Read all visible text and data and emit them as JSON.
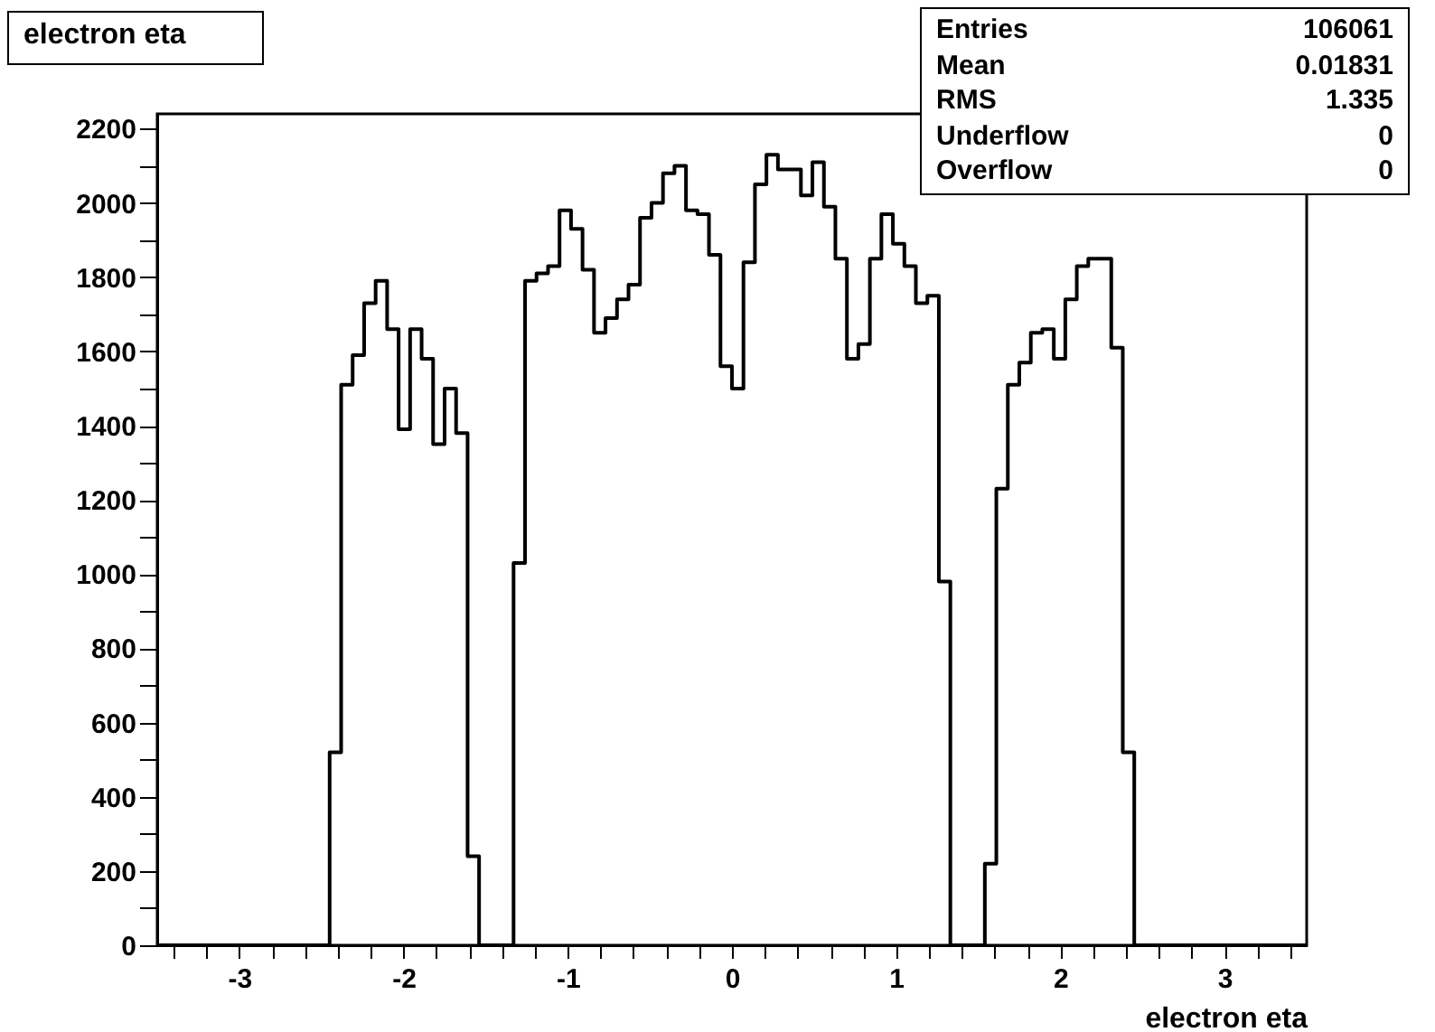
{
  "chart_data": {
    "type": "histogram",
    "title": "electron eta",
    "xlabel": "electron eta",
    "annotations": [
      "Entries",
      "106061",
      "Mean",
      "0.01831",
      "RMS",
      "1.335",
      "Underflow",
      "0",
      "Overflow",
      "0"
    ],
    "color": "#000000",
    "bins": [
      -3.5,
      -3.43,
      -3.36,
      -3.29,
      -3.22,
      -3.15,
      -3.08,
      -3.01,
      -2.94,
      -2.87,
      -2.8,
      -2.73,
      -2.66,
      -2.59,
      -2.52,
      -2.45,
      -2.38,
      -2.31,
      -2.24,
      -2.17,
      -2.1,
      -2.03,
      -1.96,
      -1.89,
      -1.82,
      -1.75,
      -1.68,
      -1.61,
      -1.54,
      -1.47,
      -1.4,
      -1.33,
      -1.26,
      -1.19,
      -1.12,
      -1.05,
      -0.98,
      -0.91,
      -0.84,
      -0.77,
      -0.7,
      -0.63,
      -0.56,
      -0.49,
      -0.42,
      -0.35,
      -0.28,
      -0.21,
      -0.14,
      -0.07,
      0,
      0.07,
      0.14,
      0.21,
      0.28,
      0.35,
      0.42,
      0.49,
      0.56,
      0.63,
      0.7,
      0.77,
      0.84,
      0.91,
      0.98,
      1.05,
      1.12,
      1.19,
      1.26,
      1.33,
      1.4,
      1.47,
      1.54,
      1.61,
      1.68,
      1.75,
      1.82,
      1.89,
      1.96,
      2.03,
      2.1,
      2.17,
      2.24,
      2.31,
      2.38,
      2.45,
      2.52,
      2.59,
      2.66,
      2.73,
      2.8,
      2.87,
      2.94,
      3.01,
      3.08,
      3.15,
      3.22,
      3.29,
      3.36,
      3.43,
      3.5
    ],
    "values": [
      0,
      0,
      0,
      0,
      0,
      0,
      0,
      0,
      0,
      0,
      0,
      0,
      0,
      0,
      0,
      520,
      1510,
      1590,
      1730,
      1790,
      1660,
      1390,
      1660,
      1580,
      1350,
      1500,
      1380,
      240,
      0,
      0,
      0,
      1030,
      1790,
      1810,
      1830,
      1980,
      1930,
      1820,
      1650,
      1690,
      1740,
      1780,
      1960,
      2000,
      2080,
      2100,
      1980,
      1970,
      1860,
      1560,
      1500,
      1840,
      2050,
      2130,
      2090,
      2090,
      2020,
      2110,
      1990,
      1850,
      1580,
      1620,
      1850,
      1970,
      1890,
      1830,
      1730,
      1750,
      980,
      0,
      0,
      0,
      220,
      1230,
      1510,
      1570,
      1650,
      1660,
      1580,
      1740,
      1830,
      1850,
      1850,
      1610,
      520,
      0,
      0,
      0,
      0,
      0,
      0,
      0,
      0,
      0,
      0,
      0,
      0,
      0,
      0,
      0
    ],
    "xlim": [
      -3.5,
      3.5
    ],
    "xticks": [
      {
        "value": -3.4,
        "label": null
      },
      {
        "value": -3.2,
        "label": null
      },
      -3,
      {
        "value": -2.8,
        "label": null
      },
      {
        "value": -2.6,
        "label": null
      },
      {
        "value": -2.4,
        "label": null
      },
      {
        "value": -2.2,
        "label": null
      },
      -2,
      {
        "value": -1.8,
        "label": null
      },
      {
        "value": -1.6,
        "label": null
      },
      {
        "value": -1.4,
        "label": null
      },
      {
        "value": -1.2,
        "label": null
      },
      -1,
      {
        "value": -0.8,
        "label": null
      },
      {
        "value": -0.6,
        "label": null
      },
      {
        "value": -0.4,
        "label": null
      },
      {
        "value": -0.2,
        "label": null
      },
      0,
      {
        "value": 0.2,
        "label": null
      },
      {
        "value": 0.4,
        "label": null
      },
      {
        "value": 0.6,
        "label": null
      },
      {
        "value": 0.8,
        "label": null
      },
      1,
      {
        "value": 1.2,
        "label": null
      },
      {
        "value": 1.4,
        "label": null
      },
      {
        "value": 1.6,
        "label": null
      },
      {
        "value": 1.8,
        "label": null
      },
      2,
      {
        "value": 2.2,
        "label": null
      },
      {
        "value": 2.4,
        "label": null
      },
      {
        "value": 2.6,
        "label": null
      },
      {
        "value": 2.8,
        "label": null
      },
      3,
      {
        "value": 3.2,
        "label": null
      },
      {
        "value": 3.4,
        "label": null
      }
    ],
    "ylim": [
      0,
      2240
    ],
    "yticks": [
      0,
      {
        "value": 100,
        "label": null
      },
      200,
      {
        "value": 300,
        "label": null
      },
      400,
      {
        "value": 500,
        "label": null
      },
      600,
      {
        "value": 700,
        "label": null
      },
      800,
      {
        "value": 900,
        "label": null
      },
      1000,
      {
        "value": 1100,
        "label": null
      },
      1200,
      {
        "value": 1300,
        "label": null
      },
      1400,
      {
        "value": 1500,
        "label": null
      },
      1600,
      {
        "value": 1700,
        "label": null
      },
      1800,
      {
        "value": 1900,
        "label": null
      },
      2000,
      {
        "value": 2100,
        "label": null
      },
      2200
    ]
  }
}
